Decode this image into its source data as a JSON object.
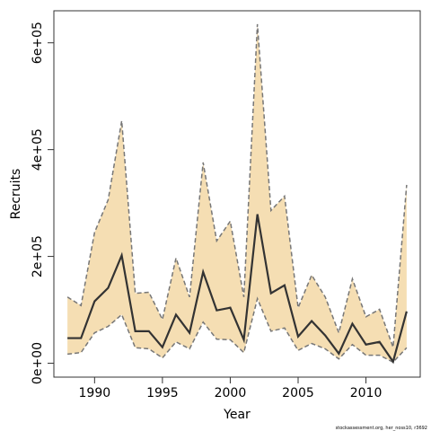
{
  "chart_data": {
    "type": "band-line",
    "x_label": "Year",
    "y_label": "Recruits",
    "footnote": "stockassessment.org, her_noss10, r3692",
    "x": [
      1988,
      1989,
      1990,
      1991,
      1992,
      1993,
      1994,
      1995,
      1996,
      1997,
      1998,
      1999,
      2000,
      2001,
      2002,
      2003,
      2004,
      2005,
      2006,
      2007,
      2008,
      2009,
      2010,
      2011,
      2012,
      2013
    ],
    "values": [
      47000,
      47000,
      116000,
      141000,
      202000,
      60000,
      60000,
      30000,
      91000,
      57000,
      171000,
      99000,
      104000,
      44000,
      279000,
      131000,
      146000,
      50000,
      79000,
      52000,
      18000,
      74000,
      35000,
      40000,
      3000,
      97000
    ],
    "upper": [
      124000,
      108000,
      245000,
      306000,
      454000,
      131000,
      133000,
      82000,
      197000,
      124000,
      376000,
      229000,
      266000,
      124000,
      635000,
      286000,
      313000,
      104000,
      165000,
      124000,
      57000,
      158000,
      87000,
      101000,
      30000,
      334000
    ],
    "lower": [
      17000,
      20000,
      57000,
      69000,
      91000,
      29000,
      27000,
      10000,
      40000,
      27000,
      77000,
      45000,
      44000,
      20000,
      121000,
      60000,
      66000,
      24000,
      37000,
      27000,
      8000,
      35000,
      15000,
      15000,
      2000,
      29000
    ],
    "color": "#333333",
    "band_color": "#f5deb3",
    "band_edge_color": "#777777",
    "xlim": [
      1987,
      2014
    ],
    "xticks": [
      1990,
      1995,
      2000,
      2005,
      2010
    ],
    "ylim": [
      -26000,
      660000
    ],
    "yticks": [
      {
        "value": 0,
        "label": "0e+00"
      },
      {
        "value": 200000,
        "label": "2e+05"
      },
      {
        "value": 400000,
        "label": "4e+05"
      },
      {
        "value": 600000,
        "label": "6e+05"
      }
    ]
  }
}
